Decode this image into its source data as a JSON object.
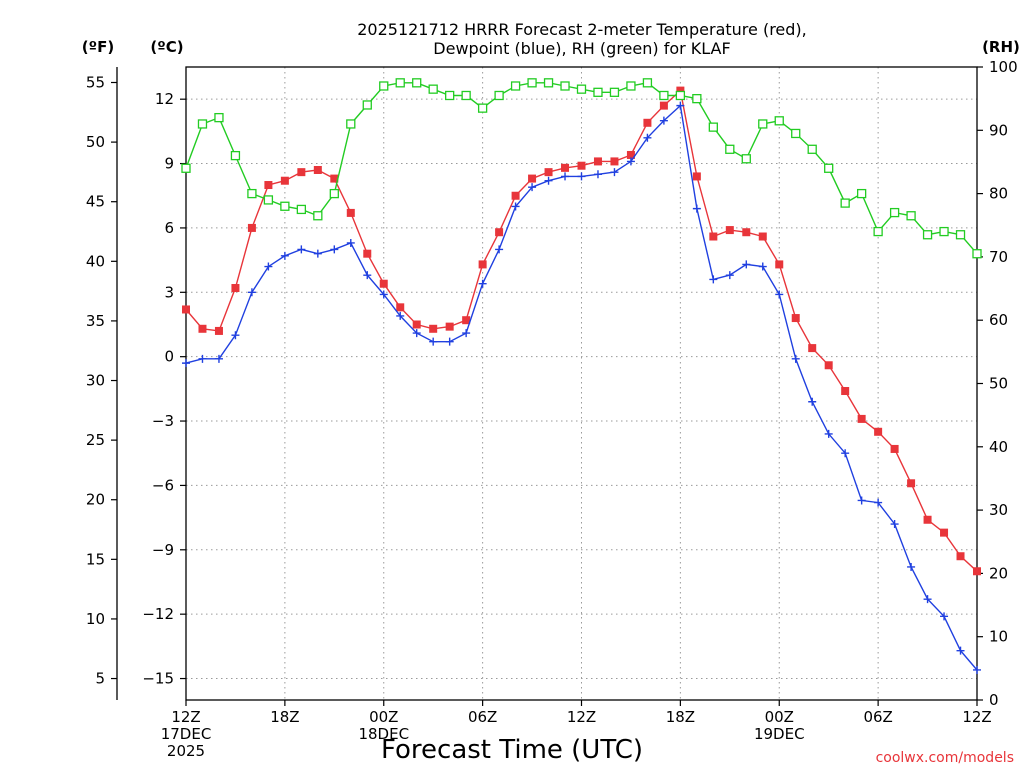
{
  "chart_data": {
    "type": "line",
    "title": [
      "2025121712 HRRR Forecast 2-meter Temperature (red),",
      "Dewpoint (blue), RH (green) for KLAF"
    ],
    "xlabel": "Forecast Time (UTC)",
    "units": {
      "fahrenheit": "(ºF)",
      "celsius": "(ºC)",
      "rh": "(RH)"
    },
    "credit": "coolwx.com/models",
    "x_range_hours": [
      0,
      48
    ],
    "x_ticks": [
      {
        "h": 0,
        "labels": [
          "12Z",
          "17DEC",
          "2025"
        ]
      },
      {
        "h": 6,
        "labels": [
          "18Z"
        ]
      },
      {
        "h": 12,
        "labels": [
          "00Z",
          "18DEC"
        ]
      },
      {
        "h": 18,
        "labels": [
          "06Z"
        ]
      },
      {
        "h": 24,
        "labels": [
          "12Z"
        ]
      },
      {
        "h": 30,
        "labels": [
          "18Z"
        ]
      },
      {
        "h": 36,
        "labels": [
          "00Z",
          "19DEC"
        ]
      },
      {
        "h": 42,
        "labels": [
          "06Z"
        ]
      },
      {
        "h": 48,
        "labels": [
          "12Z"
        ]
      }
    ],
    "y_celsius": {
      "range": [
        -16,
        13.5
      ],
      "ticks": [
        12,
        9,
        6,
        3,
        0,
        -3,
        -6,
        -9,
        -12,
        -15
      ],
      "tick_labels": [
        "12",
        "9",
        "6",
        "3",
        "0",
        "−3",
        "−6",
        "−9",
        "−12",
        "−15"
      ]
    },
    "y_fahrenheit": {
      "ticks": [
        55,
        50,
        45,
        40,
        35,
        30,
        25,
        20,
        15,
        10,
        5
      ],
      "tick_labels": [
        "55",
        "50",
        "45",
        "40",
        "35",
        "30",
        "25",
        "20",
        "15",
        "10",
        "5"
      ]
    },
    "y_rh": {
      "range": [
        0,
        100
      ],
      "ticks": [
        100,
        90,
        80,
        70,
        60,
        50,
        40,
        30,
        20,
        10,
        0
      ],
      "tick_labels": [
        "100",
        "90",
        "80",
        "70",
        "60",
        "50",
        "40",
        "30",
        "20",
        "10",
        "0"
      ]
    },
    "grid": true,
    "x_hours": [
      0,
      1,
      2,
      3,
      4,
      5,
      6,
      7,
      8,
      9,
      10,
      11,
      12,
      13,
      14,
      15,
      16,
      17,
      18,
      19,
      20,
      21,
      22,
      23,
      24,
      25,
      26,
      27,
      28,
      29,
      30,
      31,
      32,
      33,
      34,
      35,
      36,
      37,
      38,
      39,
      40,
      41,
      42,
      43,
      44,
      45,
      46,
      47,
      48
    ],
    "series": [
      {
        "key": "temperature",
        "axis": "celsius",
        "color": "#e8353a",
        "marker": "filled-square",
        "values": [
          2.2,
          1.3,
          1.2,
          3.2,
          6.0,
          8.0,
          8.2,
          8.6,
          8.7,
          8.3,
          6.7,
          4.8,
          3.4,
          2.3,
          1.5,
          1.3,
          1.4,
          1.7,
          4.3,
          5.8,
          7.5,
          8.3,
          8.6,
          8.8,
          8.9,
          9.1,
          9.1,
          9.4,
          10.9,
          11.7,
          12.4,
          8.4,
          5.6,
          5.9,
          5.8,
          5.6,
          4.3,
          1.8,
          0.4,
          -0.4,
          -1.6,
          -2.9,
          -3.5,
          -4.3,
          -5.9,
          -7.6,
          -8.2,
          -9.3,
          -10.0
        ]
      },
      {
        "key": "dewpoint",
        "axis": "celsius",
        "color": "#2040e0",
        "marker": "plus",
        "values": [
          -0.3,
          -0.1,
          -0.1,
          1.0,
          3.0,
          4.2,
          4.7,
          5.0,
          4.8,
          5.0,
          5.3,
          3.8,
          2.9,
          1.9,
          1.1,
          0.7,
          0.7,
          1.1,
          3.4,
          5.0,
          7.0,
          7.9,
          8.2,
          8.4,
          8.4,
          8.5,
          8.6,
          9.1,
          10.2,
          11.0,
          11.7,
          6.9,
          3.6,
          3.8,
          4.3,
          4.2,
          2.9,
          -0.1,
          -2.1,
          -3.6,
          -4.5,
          -6.7,
          -6.8,
          -7.8,
          -9.8,
          -11.3,
          -12.1,
          -13.7,
          -14.6
        ]
      },
      {
        "key": "rh",
        "axis": "rh",
        "color": "#22cc22",
        "marker": "open-square",
        "values": [
          84,
          91,
          92,
          86,
          80,
          79,
          78,
          77.5,
          76.5,
          80,
          91,
          94,
          97,
          97.5,
          97.5,
          96.5,
          95.5,
          95.5,
          93.5,
          95.5,
          97,
          97.5,
          97.5,
          97,
          96.5,
          96,
          96,
          97,
          97.5,
          95.5,
          95.5,
          95,
          90.5,
          87,
          85.5,
          91,
          91.5,
          89.5,
          87,
          84,
          78.5,
          80,
          74,
          77,
          76.5,
          73.5,
          74,
          73.5,
          70.5
        ]
      }
    ]
  }
}
